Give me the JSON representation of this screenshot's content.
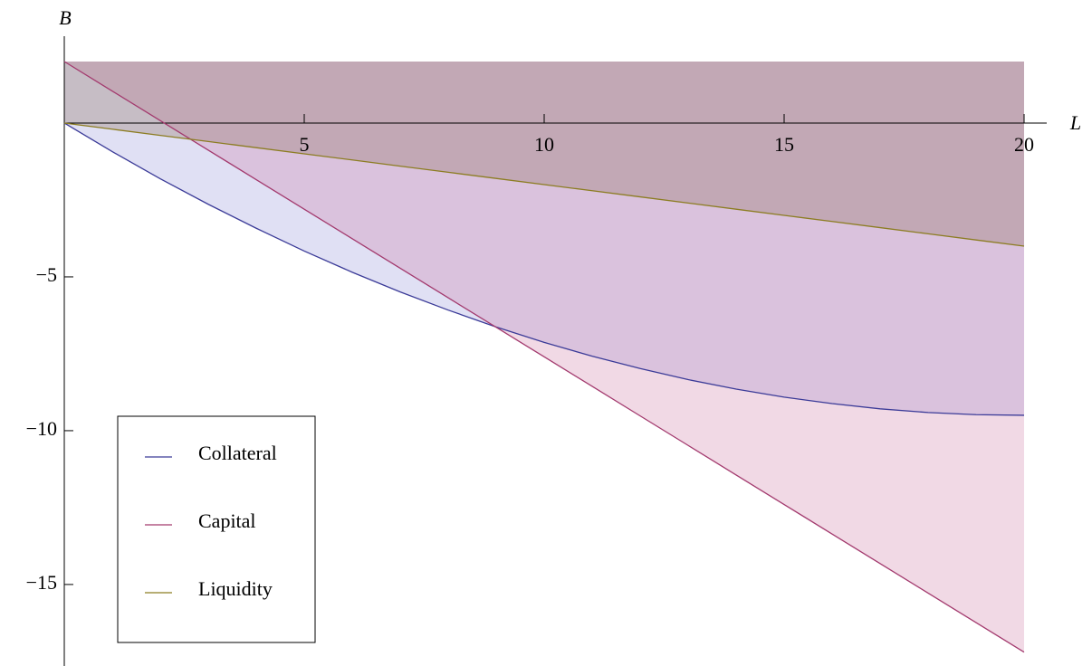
{
  "chart_data": {
    "type": "area",
    "x_label": "L",
    "y_label": "B",
    "x": [
      0,
      1,
      2,
      3,
      4,
      5,
      6,
      7,
      8,
      9,
      10,
      11,
      12,
      13,
      14,
      15,
      16,
      17,
      18,
      19,
      20
    ],
    "series": [
      {
        "name": "Collateral",
        "color": "#3b3b98",
        "fill": "rgba(70,70,190,0.17)",
        "values": [
          0,
          -0.93,
          -1.81,
          -2.64,
          -3.42,
          -4.16,
          -4.85,
          -5.49,
          -6.08,
          -6.63,
          -7.13,
          -7.58,
          -7.98,
          -8.34,
          -8.65,
          -8.91,
          -9.12,
          -9.29,
          -9.41,
          -9.48,
          -9.5
        ]
      },
      {
        "name": "Capital",
        "color": "#a33a6e",
        "fill": "rgba(205,120,160,0.28)",
        "values": [
          2,
          1.04,
          0.08,
          -0.88,
          -1.84,
          -2.8,
          -3.76,
          -4.72,
          -5.68,
          -6.64,
          -7.6,
          -8.56,
          -9.52,
          -10.48,
          -11.44,
          -12.4,
          -13.36,
          -14.32,
          -15.28,
          -16.24,
          -17.2
        ]
      },
      {
        "name": "Liquidity",
        "color": "#8c7d22",
        "fill": "rgba(140,110,90,0.3)",
        "values": [
          0,
          -0.2,
          -0.4,
          -0.6,
          -0.8,
          -1,
          -1.2,
          -1.4,
          -1.6,
          -1.8,
          -2,
          -2.2,
          -2.4,
          -2.6,
          -2.8,
          -3,
          -3.2,
          -3.4,
          -3.6,
          -3.8,
          -4
        ]
      }
    ],
    "xlim": [
      0,
      20
    ],
    "ylim": [
      -17.65,
      2
    ],
    "xticks": [
      5,
      10,
      15,
      20
    ],
    "yticks": [
      {
        "value": -15,
        "label": "−15"
      },
      {
        "value": -10,
        "label": "−10"
      },
      {
        "value": -5,
        "label": "−5"
      }
    ]
  }
}
